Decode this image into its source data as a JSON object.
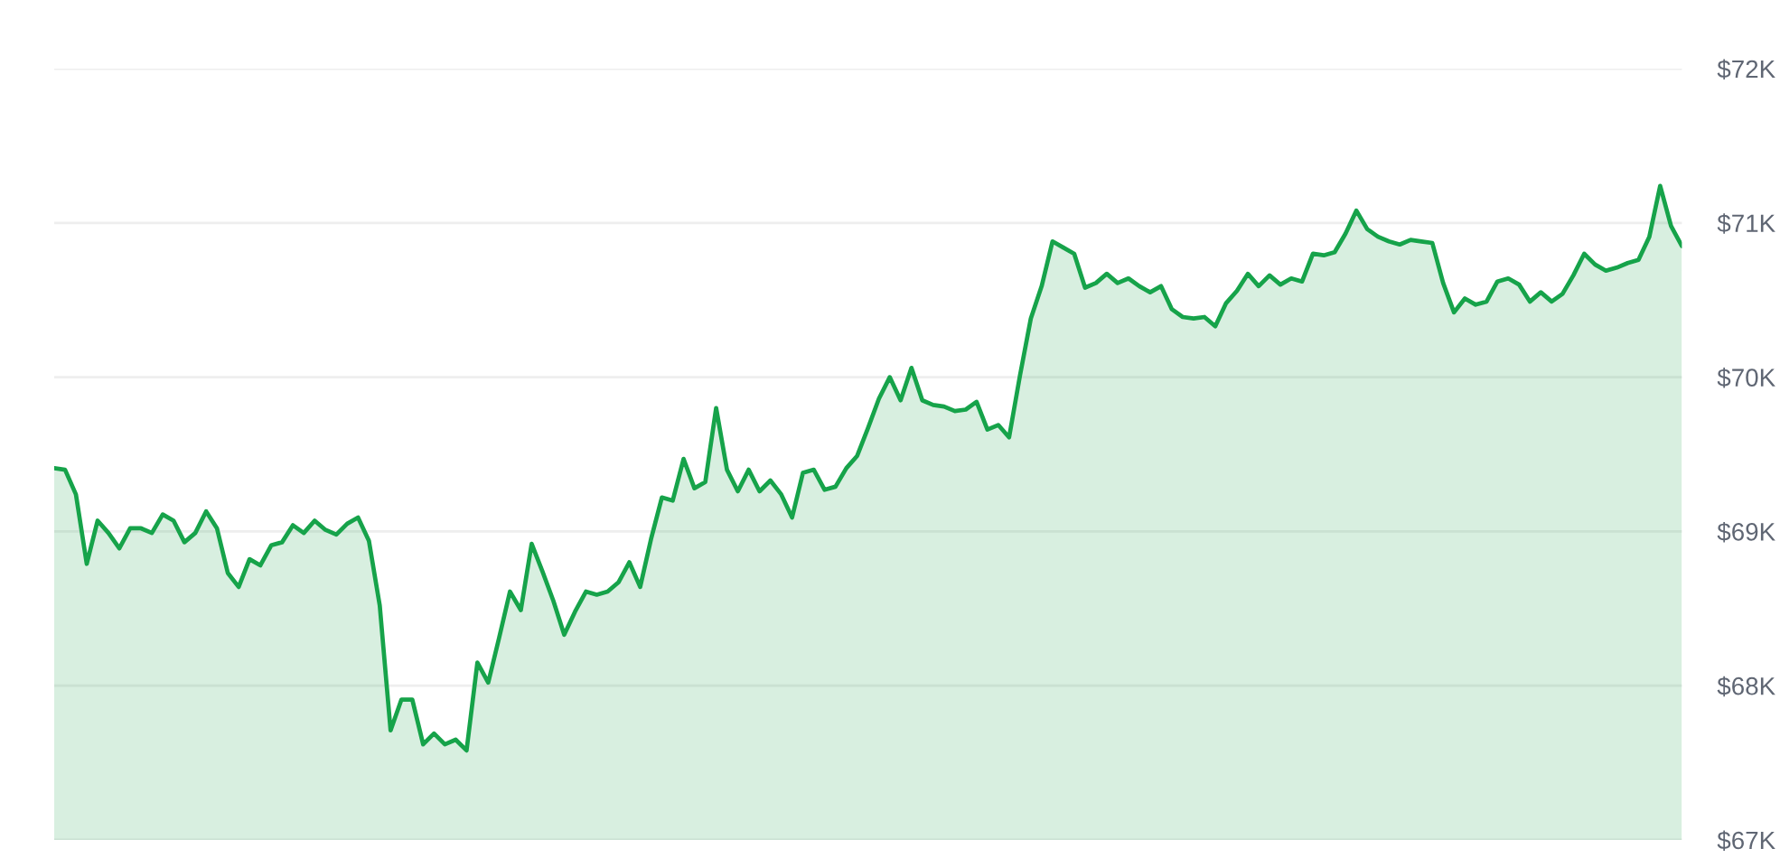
{
  "chart_data": {
    "type": "area",
    "categories": [
      null,
      null,
      null,
      null,
      null,
      null,
      null,
      null,
      null,
      null,
      null,
      null,
      null,
      null,
      null,
      null,
      null,
      null,
      null,
      null,
      null,
      null,
      null,
      null,
      null,
      null,
      null,
      null,
      null,
      null,
      null,
      null,
      null,
      null,
      null,
      null,
      null,
      null,
      null,
      null,
      null,
      null,
      null,
      null,
      null,
      null,
      null,
      null,
      null,
      null,
      null,
      null,
      null,
      null,
      null,
      null,
      null,
      null,
      null,
      null,
      null,
      null,
      null,
      null,
      null,
      null,
      null,
      null,
      null,
      null,
      null,
      null,
      null,
      null,
      null,
      null,
      null,
      null,
      null,
      null,
      null,
      null,
      null,
      null,
      null,
      null,
      null,
      null,
      null,
      null,
      null,
      null,
      null,
      null,
      null,
      null,
      null,
      null,
      null,
      null,
      null,
      null,
      null,
      null,
      null,
      null,
      null,
      null,
      null,
      null,
      null,
      null,
      null,
      null,
      null,
      null,
      null,
      null,
      null,
      null,
      null,
      null,
      null,
      null,
      null,
      null,
      null,
      null,
      null,
      null,
      null,
      null,
      null,
      null,
      null,
      null,
      null,
      null,
      null,
      null,
      null,
      null,
      null,
      null,
      null,
      null,
      null,
      null,
      null,
      null,
      null
    ],
    "series": [
      {
        "color": "#16a34a",
        "values": [
          69410,
          69400,
          69240,
          68790,
          69070,
          68990,
          68890,
          69020,
          69020,
          68990,
          69110,
          69070,
          68930,
          68990,
          69130,
          69020,
          68730,
          68640,
          68820,
          68780,
          68910,
          68930,
          69040,
          68990,
          69070,
          69010,
          68980,
          69050,
          69090,
          68940,
          68520,
          67710,
          67910,
          67910,
          67620,
          67690,
          67620,
          67650,
          67580,
          68150,
          68020,
          68310,
          68610,
          68490,
          68920,
          68740,
          68550,
          68330,
          68480,
          68610,
          68590,
          68610,
          68670,
          68800,
          68640,
          68950,
          69220,
          69200,
          69470,
          69280,
          69320,
          69800,
          69400,
          69260,
          69400,
          69260,
          69330,
          69240,
          69090,
          69380,
          69400,
          69270,
          69290,
          69410,
          69490,
          69670,
          69860,
          70000,
          69850,
          70060,
          69850,
          69820,
          69810,
          69780,
          69790,
          69840,
          69660,
          69690,
          69610,
          70010,
          70380,
          70590,
          70880,
          70840,
          70800,
          70580,
          70610,
          70670,
          70610,
          70640,
          70590,
          70550,
          70590,
          70440,
          70390,
          70380,
          70390,
          70330,
          70480,
          70560,
          70670,
          70590,
          70660,
          70600,
          70640,
          70620,
          70800,
          70790,
          70810,
          70930,
          71080,
          70960,
          70910,
          70880,
          70860,
          70890,
          70880,
          70870,
          70610,
          70420,
          70510,
          70470,
          70490,
          70620,
          70640,
          70600,
          70490,
          70550,
          70490,
          70540,
          70660,
          70800,
          70730,
          70690,
          70710,
          70740,
          70760,
          70910,
          71240,
          70980,
          70850
        ]
      }
    ],
    "ylim": [
      67000,
      72000
    ],
    "yticks": [
      {
        "value": 67000,
        "label": "$67K"
      },
      {
        "value": 68000,
        "label": "$68K"
      },
      {
        "value": 69000,
        "label": "$69K"
      },
      {
        "value": 70000,
        "label": "$70K"
      },
      {
        "value": 71000,
        "label": "$71K"
      },
      {
        "value": 72000,
        "label": "$72K"
      }
    ],
    "grid": "y",
    "tick_labels": "y"
  }
}
